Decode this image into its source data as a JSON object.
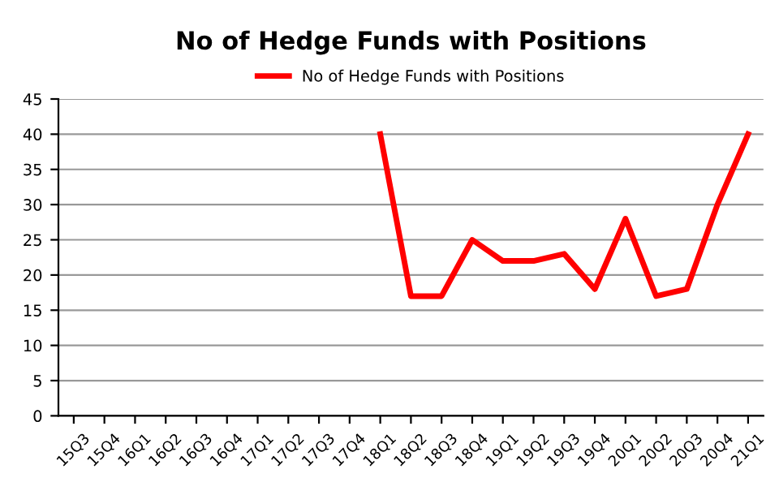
{
  "chart_data": {
    "type": "line",
    "title": "No of Hedge Funds with Positions",
    "categories": [
      "15Q3",
      "15Q4",
      "16Q1",
      "16Q2",
      "16Q3",
      "16Q4",
      "17Q1",
      "17Q2",
      "17Q3",
      "17Q4",
      "18Q1",
      "18Q2",
      "18Q3",
      "18Q4",
      "19Q1",
      "19Q2",
      "19Q3",
      "19Q4",
      "20Q1",
      "20Q2",
      "20Q3",
      "20Q4",
      "21Q1"
    ],
    "series": [
      {
        "name": "No of Hedge Funds with Positions",
        "color": "#ff0000",
        "values": [
          null,
          null,
          null,
          null,
          null,
          null,
          null,
          null,
          null,
          null,
          40,
          17,
          17,
          25,
          22,
          22,
          23,
          18,
          28,
          17,
          18,
          30,
          40
        ]
      }
    ],
    "ylim": [
      0,
      45
    ],
    "yticks": [
      0,
      5,
      10,
      15,
      20,
      25,
      30,
      35,
      40,
      45
    ],
    "grid": "y",
    "legend": "top",
    "marker": "none",
    "line_style": "solid"
  }
}
